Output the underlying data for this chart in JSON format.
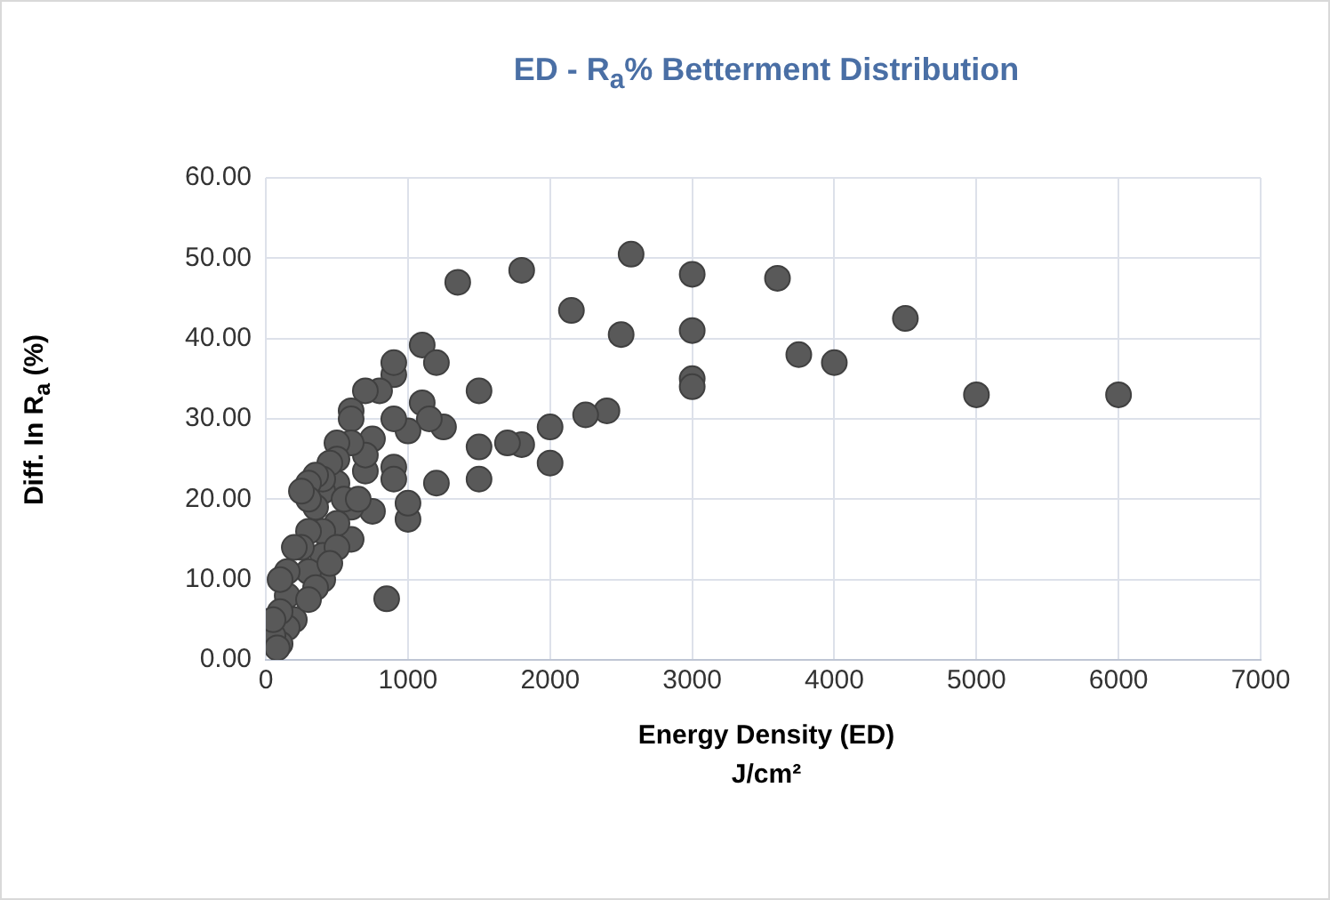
{
  "chart_data": {
    "type": "scatter",
    "title": "ED - R$_{a}$% Betterment Distribution",
    "xlabel": "Energy Density (ED)\nJ/cm²",
    "ylabel": "Diff. In R$_{a}$ (%)",
    "xlim": [
      0,
      7000
    ],
    "xticks": [
      0,
      1000,
      2000,
      3000,
      4000,
      5000,
      6000,
      7000
    ],
    "ylim": [
      0,
      60
    ],
    "yticks": [
      {
        "value": 0,
        "label": "0.00"
      },
      {
        "value": 10,
        "label": "10.00"
      },
      {
        "value": 20,
        "label": "20.00"
      },
      {
        "value": 30,
        "label": "30.00"
      },
      {
        "value": 40,
        "label": "40.00"
      },
      {
        "value": 50,
        "label": "50.00"
      },
      {
        "value": 60,
        "label": "60.00"
      }
    ],
    "grid": true,
    "legend": false,
    "marker": "circle",
    "series": [
      {
        "color": "#595959",
        "x": [
          1350,
          1800,
          2570,
          3000,
          3600,
          4500,
          2150,
          2500,
          3000,
          3750,
          4000,
          3000,
          3000,
          5000,
          6000,
          2400,
          2250,
          2000,
          1800,
          1700,
          1500,
          1500,
          1500,
          2000,
          1100,
          1200,
          1250,
          1100,
          1150,
          1200,
          1000,
          1000,
          1000,
          900,
          900,
          900,
          900,
          850,
          900,
          800,
          700,
          750,
          700,
          750,
          700,
          600,
          600,
          600,
          600,
          600,
          500,
          500,
          500,
          500,
          450,
          400,
          400,
          400,
          400,
          400,
          350,
          350,
          300,
          300,
          300,
          300,
          250,
          250,
          200,
          200,
          150,
          150,
          150,
          100,
          100,
          100,
          50,
          50,
          80,
          500,
          550,
          650,
          450,
          350,
          300
        ],
        "values": [
          47,
          48.5,
          50.5,
          48,
          47.5,
          42.5,
          43.5,
          40.5,
          41,
          38,
          37,
          35,
          34,
          33,
          33,
          31,
          30.5,
          29,
          26.8,
          27,
          26.5,
          33.5,
          22.5,
          24.5,
          39.2,
          37,
          29,
          32,
          30,
          22,
          17.5,
          19.5,
          28.5,
          35.5,
          37,
          30,
          24,
          7.6,
          22.5,
          33.5,
          33.5,
          27.5,
          23.5,
          18.5,
          25.5,
          31,
          30,
          27,
          19,
          15,
          27,
          25,
          22,
          17,
          24.5,
          21,
          22.5,
          16,
          13,
          10,
          23,
          19,
          22,
          20,
          16,
          11,
          21,
          14,
          14,
          5,
          11,
          8,
          4,
          10,
          6,
          2,
          3,
          5,
          1.5,
          14,
          20,
          20,
          12,
          9,
          7.5
        ]
      }
    ]
  }
}
